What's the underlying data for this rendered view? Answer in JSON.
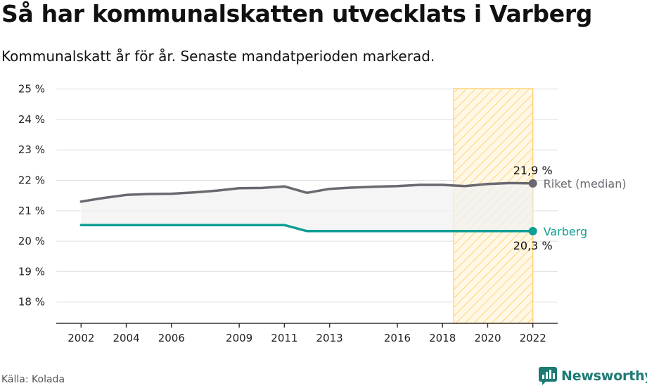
{
  "header": {
    "title": "Så har kommunalskatten utvecklats i Varberg",
    "subtitle": "Kommunalskatt år för år. Senaste mandatperioden markerad."
  },
  "footer": {
    "source": "Källa: Kolada",
    "brand": "Newsworthy",
    "brand_icon": "newsworthy-logo-icon"
  },
  "colors": {
    "riket": "#6b6870",
    "varberg": "#109f95",
    "highlight_stroke": "#ffd37a",
    "highlight_fill": "#fff8e6",
    "grid": "#dddddd",
    "band_fill": "#f2f2f2",
    "brand": "#1d7a74"
  },
  "chart_data": {
    "type": "line",
    "title": "",
    "xlabel": "",
    "ylabel": "",
    "x": [
      2002,
      2003,
      2004,
      2005,
      2006,
      2007,
      2008,
      2009,
      2010,
      2011,
      2012,
      2013,
      2014,
      2015,
      2016,
      2017,
      2018,
      2019,
      2020,
      2021,
      2022
    ],
    "xticks": [
      2002,
      2004,
      2006,
      2009,
      2011,
      2013,
      2016,
      2018,
      2020,
      2022
    ],
    "xlim": [
      2000.9,
      2023.1
    ],
    "ylim": [
      17.3,
      25.2
    ],
    "yticks": [
      18,
      19,
      20,
      21,
      22,
      23,
      24,
      25
    ],
    "ytick_labels": [
      "18 %",
      "19 %",
      "20 %",
      "21 %",
      "22 %",
      "23 %",
      "24 %",
      "25 %"
    ],
    "grid": true,
    "shaded_between_series": true,
    "highlight_period": {
      "from": 2018.5,
      "to": 2022,
      "label": "Senaste mandatperioden",
      "style": "hatched"
    },
    "series": [
      {
        "name": "Riket (median)",
        "color": "#6b6870",
        "values": [
          21.3,
          21.42,
          21.52,
          21.55,
          21.56,
          21.6,
          21.66,
          21.74,
          21.75,
          21.8,
          21.59,
          21.72,
          21.76,
          21.79,
          21.81,
          21.85,
          21.85,
          21.81,
          21.88,
          21.91,
          21.9
        ],
        "end_label": "21,9 %"
      },
      {
        "name": "Varberg",
        "color": "#109f95",
        "values": [
          20.53,
          20.53,
          20.53,
          20.53,
          20.53,
          20.53,
          20.53,
          20.53,
          20.53,
          20.53,
          20.33,
          20.33,
          20.33,
          20.33,
          20.33,
          20.33,
          20.33,
          20.33,
          20.33,
          20.33,
          20.33
        ],
        "end_label": "20,3 %"
      }
    ]
  }
}
